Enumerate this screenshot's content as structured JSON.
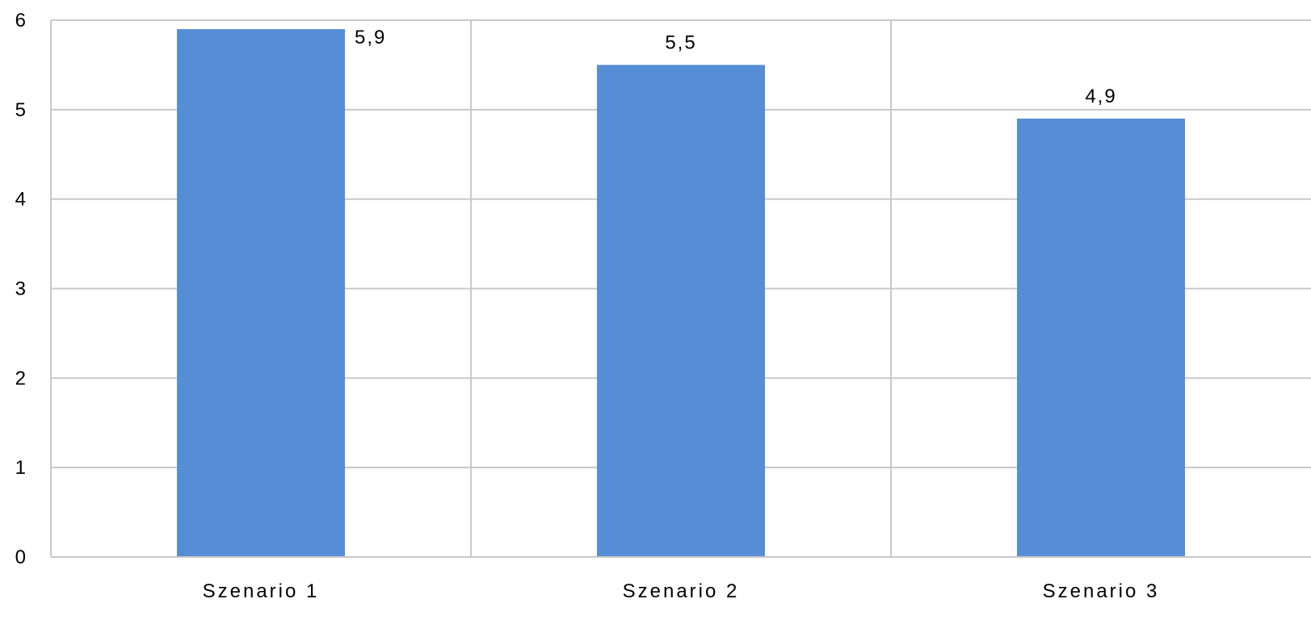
{
  "chart_data": {
    "type": "bar",
    "categories": [
      "Szenario 1",
      "Szenario 2",
      "Szenario 3"
    ],
    "values": [
      5.9,
      5.5,
      4.9
    ],
    "data_labels": [
      "5,9",
      "5,5",
      "4,9"
    ],
    "y_ticks": [
      "0",
      "1",
      "2",
      "3",
      "4",
      "5",
      "6"
    ],
    "ylim": [
      0,
      6
    ],
    "grid": true,
    "legend": "none",
    "bar_color": "#558ed5",
    "grid_color": "#c8c8c8"
  }
}
